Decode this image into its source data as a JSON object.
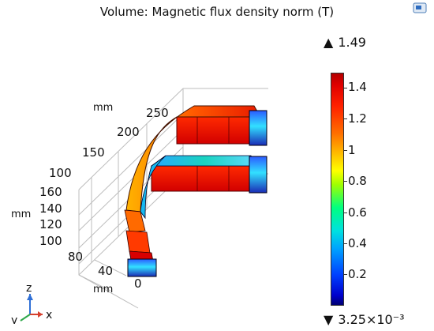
{
  "plot": {
    "title": "Volume: Magnetic flux density norm (T)"
  },
  "colorbar": {
    "max_label": "1.49",
    "min_label": "3.25×10⁻³",
    "ticks": [
      "1.4",
      "1.2",
      "1",
      "0.8",
      "0.6",
      "0.4",
      "0.2"
    ]
  },
  "axes": {
    "x_unit": "mm",
    "y_unit": "mm",
    "z_unit": "mm",
    "x_ticks": [
      "250",
      "200",
      "150",
      "100"
    ],
    "z_ticks": [
      "160",
      "140",
      "120",
      "100"
    ],
    "y_ticks": [
      "80",
      "40",
      "0"
    ]
  },
  "triad": {
    "x": "x",
    "y": "y",
    "z": "z"
  },
  "icons": {
    "app": "window-icon",
    "max": "triangle-up-icon",
    "min": "triangle-down-icon"
  }
}
